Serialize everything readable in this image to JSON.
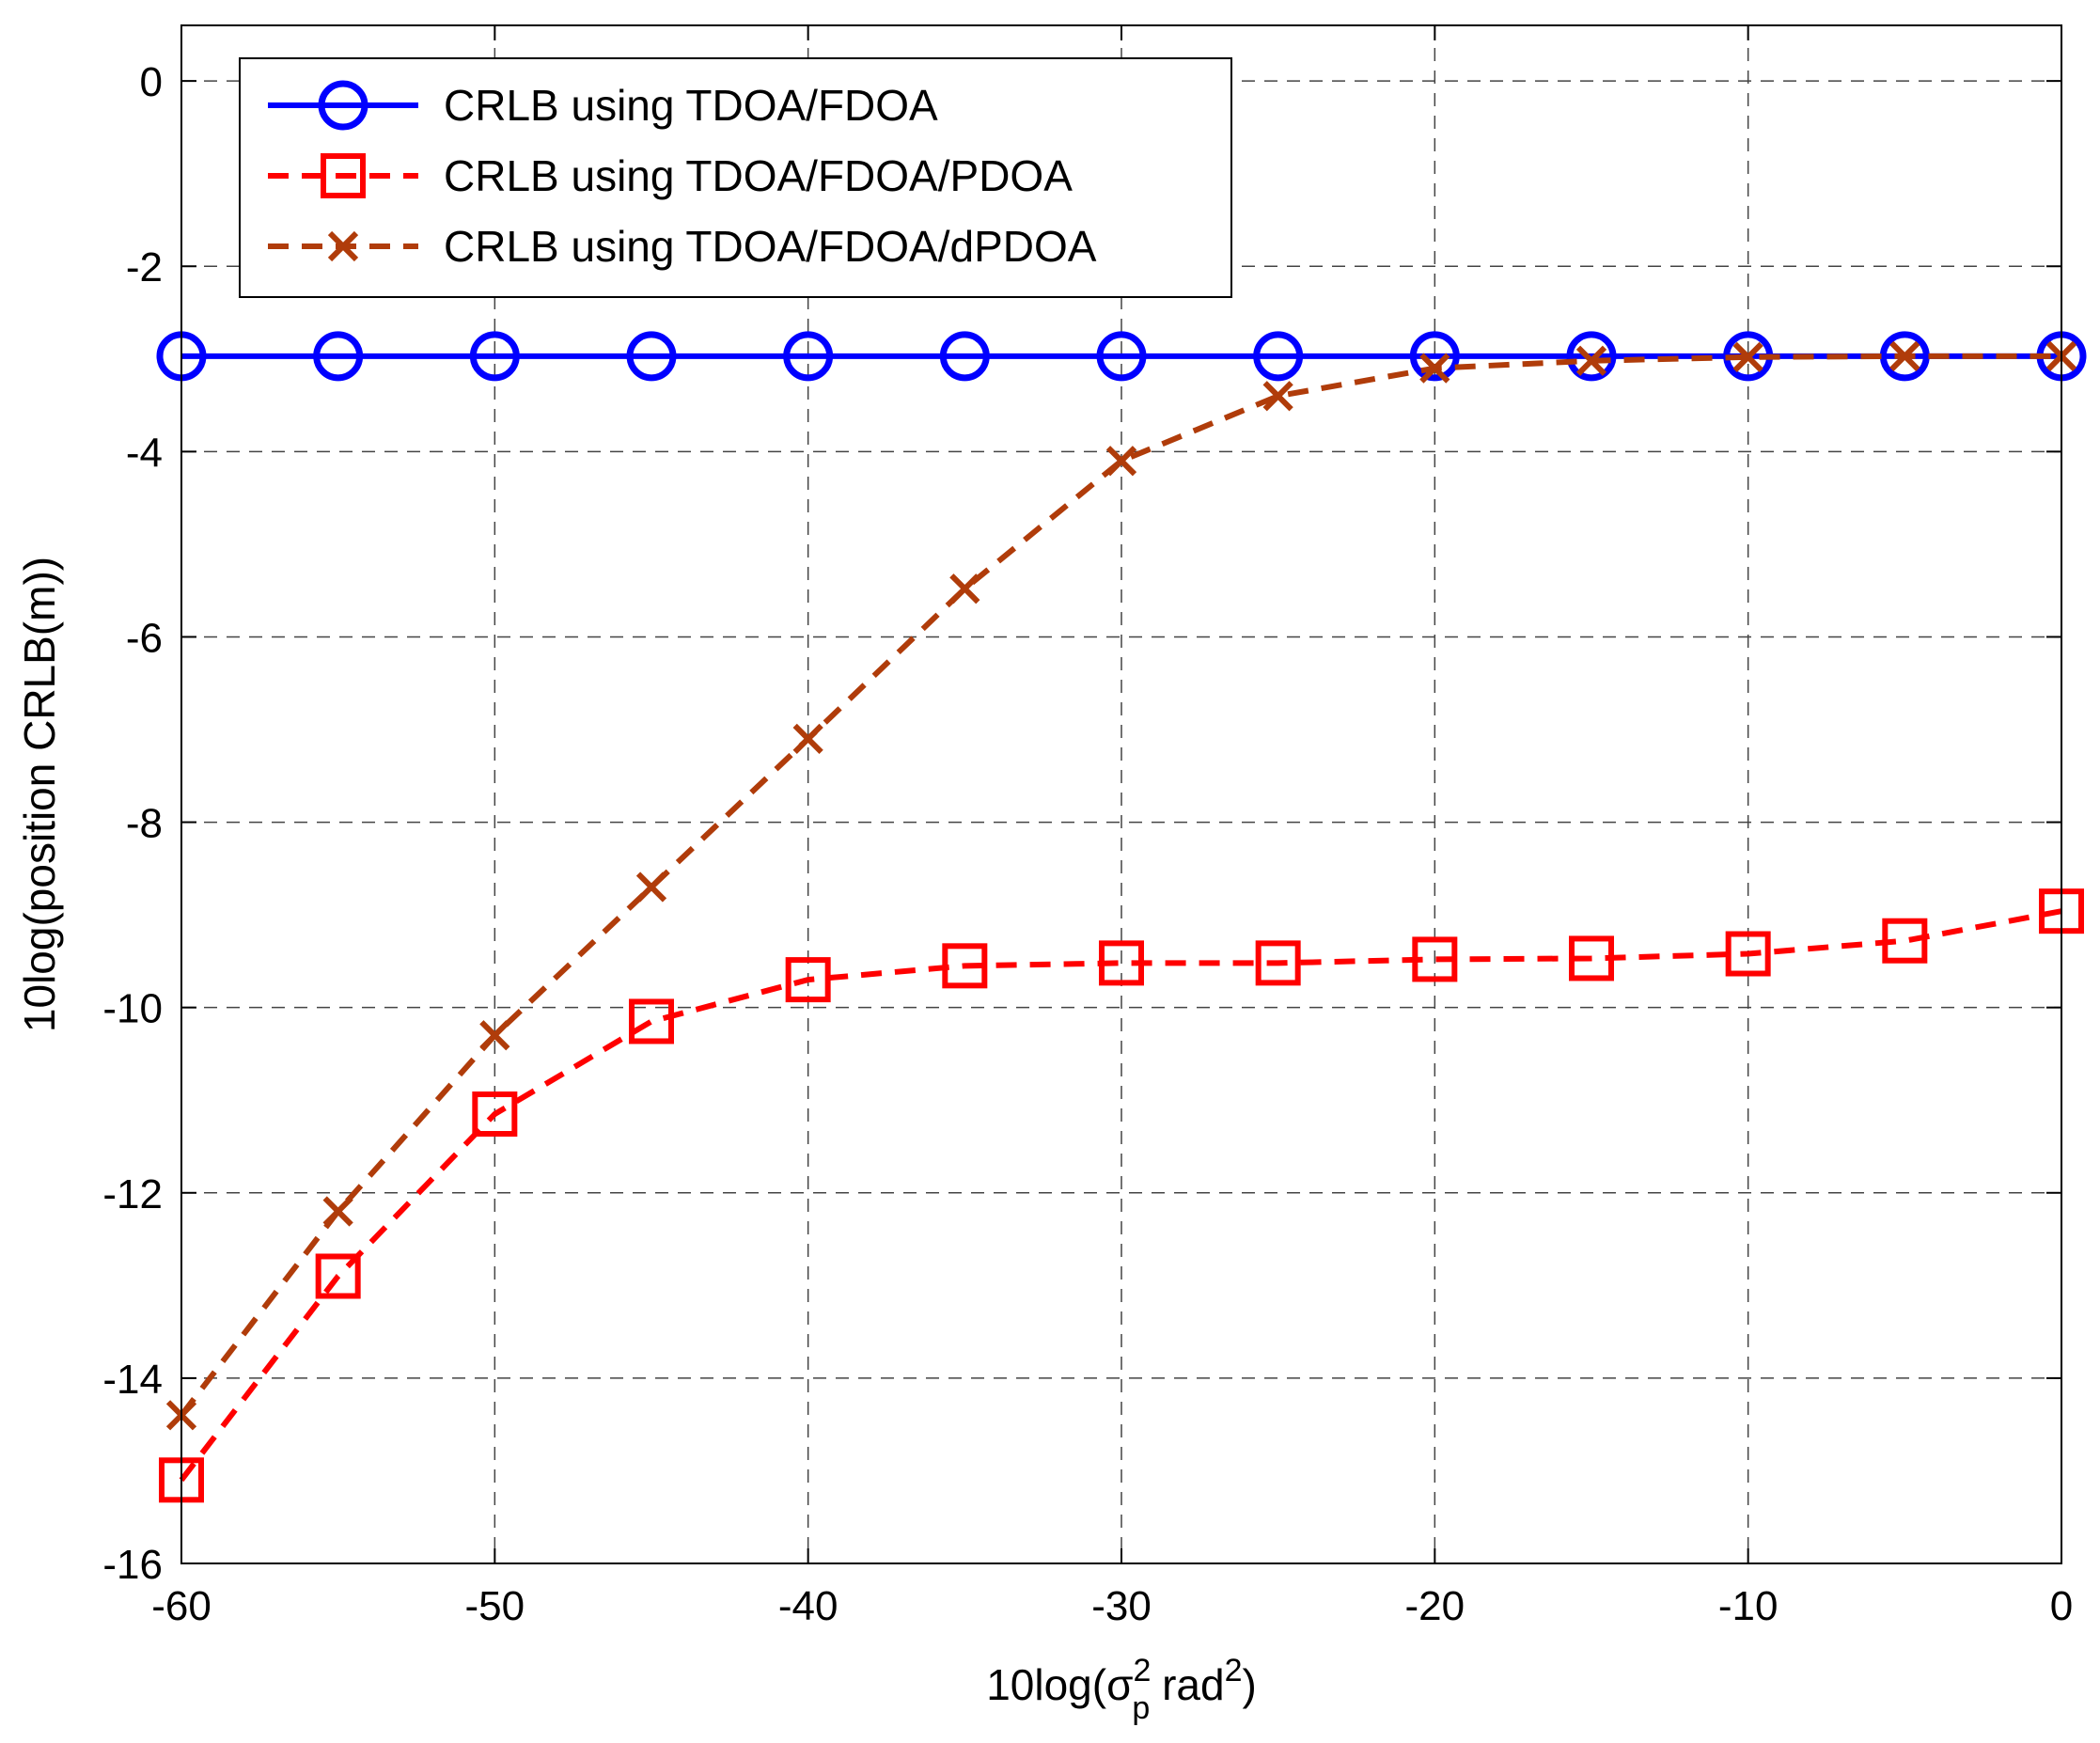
{
  "chart_data": {
    "type": "line",
    "xlabel_main": "10log(",
    "xlabel_sigma": "σ",
    "xlabel_sup": "2",
    "xlabel_sub": "p",
    "xlabel_unit": " rad",
    "xlabel_unit_sup": "2",
    "xlabel_close": ")",
    "ylabel": "10log(position CRLB(m))",
    "xlim": [
      -60,
      0
    ],
    "ylim": [
      -16,
      0.6
    ],
    "x_ticks": [
      -60,
      -50,
      -40,
      -30,
      -20,
      -10,
      0
    ],
    "y_ticks": [
      0,
      -2,
      -4,
      -6,
      -8,
      -10,
      -12,
      -14,
      -16
    ],
    "grid": true,
    "legend_position": "top-left",
    "x": [
      -60,
      -55,
      -50,
      -45,
      -40,
      -35,
      -30,
      -25,
      -20,
      -15,
      -10,
      -5,
      0
    ],
    "series": [
      {
        "name": "CRLB using TDOA/FDOA",
        "color": "#0000ff",
        "line_style": "solid",
        "marker": "circle",
        "values": [
          -2.97,
          -2.97,
          -2.97,
          -2.97,
          -2.97,
          -2.97,
          -2.97,
          -2.97,
          -2.97,
          -2.97,
          -2.97,
          -2.97,
          -2.97
        ]
      },
      {
        "name": "CRLB using TDOA/FDOA/PDOA",
        "color": "#ff0000",
        "line_style": "dashed",
        "marker": "square",
        "values": [
          -15.1,
          -12.9,
          -11.15,
          -10.15,
          -9.7,
          -9.55,
          -9.52,
          -9.52,
          -9.48,
          -9.47,
          -9.42,
          -9.28,
          -8.96
        ]
      },
      {
        "name": "CRLB using TDOA/FDOA/dPDOA",
        "color": "#b03c0a",
        "line_style": "dashed",
        "marker": "x",
        "values": [
          -14.4,
          -12.2,
          -10.3,
          -8.7,
          -7.1,
          -5.48,
          -4.1,
          -3.4,
          -3.1,
          -3.02,
          -2.98,
          -2.97,
          -2.97
        ]
      }
    ]
  }
}
